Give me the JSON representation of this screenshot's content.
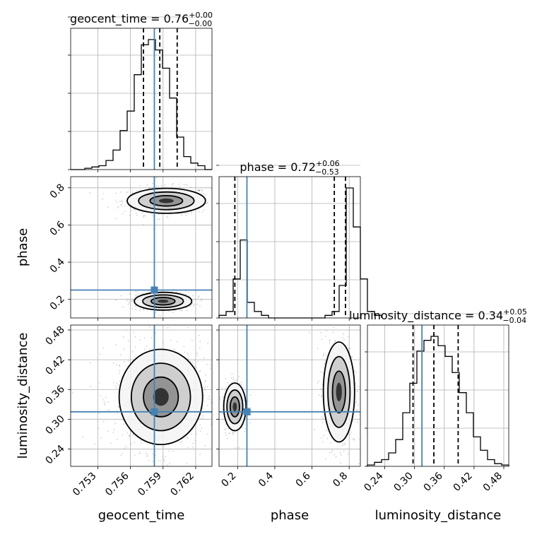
{
  "chart_data": {
    "type": "corner",
    "params": [
      "geocent_time",
      "phase",
      "luminosity_distance"
    ],
    "axis_labels": [
      "geocent_time",
      "phase",
      "luminosity_distance"
    ],
    "ranges": [
      [
        0.7505,
        0.7635
      ],
      [
        0.1,
        0.86
      ],
      [
        0.205,
        0.49
      ]
    ],
    "ticks": [
      [
        0.753,
        0.756,
        0.759,
        0.762
      ],
      [
        0.2,
        0.4,
        0.6,
        0.8
      ],
      [
        0.24,
        0.3,
        0.36,
        0.42,
        0.48
      ]
    ],
    "tick_labels": [
      [
        "0.753",
        "0.756",
        "0.759",
        "0.762"
      ],
      [
        "0.2",
        "0.4",
        "0.6",
        "0.8"
      ],
      [
        "0.24",
        "0.30",
        "0.36",
        "0.42",
        "0.48"
      ]
    ],
    "ylabel_ticks": {
      "phase": [
        "0.2",
        "0.4",
        "0.6",
        "0.8"
      ],
      "luminosity_distance": [
        "0.24",
        "0.30",
        "0.36",
        "0.42",
        "0.48"
      ]
    },
    "truths": [
      0.7582,
      0.25,
      0.315
    ],
    "titles": [
      {
        "label": "geocent_time = 0.76",
        "sup": "+0.00",
        "sub": "−0.00"
      },
      {
        "label": "phase = 0.72",
        "sup": "+0.06",
        "sub": "−0.53"
      },
      {
        "label": "luminosity_distance = 0.34",
        "sup": "+0.05",
        "sub": "−0.04"
      }
    ],
    "quantiles": [
      [
        0.7572,
        0.7587,
        0.7603
      ],
      [
        0.185,
        0.72,
        0.78
      ],
      [
        0.297,
        0.339,
        0.388
      ]
    ],
    "histograms": [
      {
        "edges_start": 0.7505,
        "bin_width": 0.00065,
        "counts": [
          0,
          0,
          0.01,
          0.02,
          0.03,
          0.07,
          0.15,
          0.3,
          0.45,
          0.73,
          0.96,
          1.0,
          0.92,
          0.78,
          0.55,
          0.25,
          0.1,
          0.05,
          0.03,
          0.0
        ]
      },
      {
        "edges_start": 0.1,
        "bin_width": 0.038,
        "counts": [
          0.02,
          0.05,
          0.3,
          0.6,
          0.12,
          0.05,
          0.02,
          0,
          0,
          0,
          0,
          0,
          0,
          0,
          0,
          0.02,
          0.05,
          0.25,
          1.0,
          0.7,
          0.3,
          0.05,
          0.02
        ]
      },
      {
        "edges_start": 0.205,
        "bin_width": 0.01425,
        "counts": [
          0.01,
          0.03,
          0.05,
          0.1,
          0.2,
          0.4,
          0.62,
          0.86,
          0.94,
          0.97,
          0.9,
          0.82,
          0.7,
          0.55,
          0.4,
          0.22,
          0.12,
          0.05,
          0.02,
          0.01
        ]
      }
    ],
    "pair_contours": [
      {
        "x": "geocent_time",
        "y": "phase",
        "modes": [
          {
            "center": [
              0.7593,
              0.73
            ],
            "sigma": [
              0.0015,
              0.028
            ],
            "weight": 0.6
          },
          {
            "center": [
              0.759,
              0.19
            ],
            "sigma": [
              0.0011,
              0.02
            ],
            "weight": 0.4
          }
        ]
      },
      {
        "x": "geocent_time",
        "y": "luminosity_distance",
        "modes": [
          {
            "center": [
              0.7588,
              0.345
            ],
            "sigma": [
              0.0016,
              0.04
            ],
            "weight": 1.0
          }
        ]
      },
      {
        "x": "phase",
        "y": "luminosity_distance",
        "modes": [
          {
            "center": [
              0.745,
              0.355
            ],
            "sigma": [
              0.035,
              0.042
            ],
            "weight": 0.65
          },
          {
            "center": [
              0.185,
              0.325
            ],
            "sigma": [
              0.025,
              0.02
            ],
            "weight": 0.35
          }
        ]
      }
    ],
    "grid": true
  }
}
